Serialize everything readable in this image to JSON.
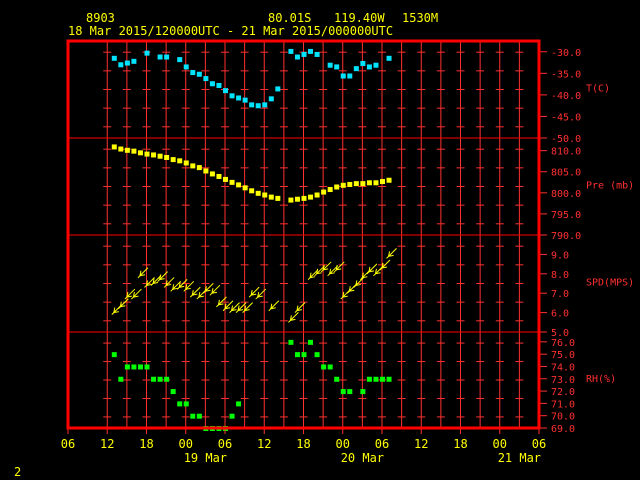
{
  "header": {
    "station": "8903",
    "lat": "80.01S",
    "lon": "119.40W",
    "elevation": "1530M",
    "range": "18 Mar 2015/120000UTC - 21 Mar 2015/000000UTC"
  },
  "page_number": "2",
  "colors": {
    "frame": "#ff0000",
    "grid": "#ff3030",
    "text": "#ffff00",
    "temp": "#00e5ff",
    "pres": "#ffff00",
    "wind": "#ffff00",
    "rh": "#00ff00"
  },
  "chart_data": {
    "type": "scatter",
    "x_unit": "hours since 18 Mar 06 UTC",
    "x_range": [
      0,
      72
    ],
    "x_ticks": [
      "06",
      "12",
      "18",
      "00",
      "06",
      "12",
      "18",
      "00",
      "06",
      "12",
      "18",
      "00",
      "06"
    ],
    "date_labels": [
      {
        "label": "19 Mar",
        "hour": 21
      },
      {
        "label": "20 Mar",
        "hour": 45
      },
      {
        "label": "21 Mar",
        "hour": 69
      }
    ],
    "panels": [
      {
        "name": "temp",
        "label": "T(C)",
        "ylim": [
          -50,
          -27.5
        ],
        "ticks": [
          {
            "v": -30,
            "t": "-30.0"
          },
          {
            "v": -35,
            "t": "-35.0"
          },
          {
            "v": -40,
            "t": "-40.0"
          },
          {
            "v": -45,
            "t": "-45.0"
          },
          {
            "v": -50,
            "t": "-50.0"
          }
        ],
        "points": [
          [
            7,
            -31.4
          ],
          [
            8,
            -32.9
          ],
          [
            9,
            -32.5
          ],
          [
            10,
            -32.1
          ],
          [
            12,
            -30.2
          ],
          [
            14,
            -31.1
          ],
          [
            15,
            -31.1
          ],
          [
            17,
            -31.7
          ],
          [
            18,
            -33.4
          ],
          [
            19,
            -34.7
          ],
          [
            20,
            -35.1
          ],
          [
            21,
            -36.1
          ],
          [
            22,
            -37.3
          ],
          [
            23,
            -37.7
          ],
          [
            24,
            -38.9
          ],
          [
            25,
            -40.1
          ],
          [
            26,
            -40.6
          ],
          [
            27,
            -41.1
          ],
          [
            28,
            -42.2
          ],
          [
            29,
            -42.4
          ],
          [
            30,
            -42.2
          ],
          [
            31,
            -40.8
          ],
          [
            32,
            -38.5
          ],
          [
            34,
            -29.8
          ],
          [
            35,
            -31.1
          ],
          [
            36,
            -30.5
          ],
          [
            37,
            -29.8
          ],
          [
            38,
            -30.5
          ],
          [
            40,
            -33.0
          ],
          [
            41,
            -33.4
          ],
          [
            42,
            -35.5
          ],
          [
            43,
            -35.5
          ],
          [
            44,
            -33.8
          ],
          [
            45,
            -32.6
          ],
          [
            46,
            -33.4
          ],
          [
            47,
            -33.0
          ],
          [
            49,
            -31.4
          ]
        ]
      },
      {
        "name": "pres",
        "label": "Pre (mb)",
        "ylim": [
          790,
          813
        ],
        "ticks": [
          {
            "v": 810,
            "t": "810.0"
          },
          {
            "v": 805,
            "t": "805.0"
          },
          {
            "v": 800,
            "t": "800.0"
          },
          {
            "v": 795,
            "t": "795.0"
          },
          {
            "v": 790,
            "t": "790.0"
          }
        ],
        "points": [
          [
            7,
            811.0
          ],
          [
            8,
            810.5
          ],
          [
            9,
            810.2
          ],
          [
            10,
            810.0
          ],
          [
            11,
            809.6
          ],
          [
            12,
            809.3
          ],
          [
            13,
            809.1
          ],
          [
            14,
            808.8
          ],
          [
            15,
            808.5
          ],
          [
            16,
            808.0
          ],
          [
            17,
            807.7
          ],
          [
            18,
            807.2
          ],
          [
            19,
            806.5
          ],
          [
            20,
            806.1
          ],
          [
            21,
            805.3
          ],
          [
            22,
            804.6
          ],
          [
            23,
            804.0
          ],
          [
            24,
            803.3
          ],
          [
            25,
            802.6
          ],
          [
            26,
            802.0
          ],
          [
            27,
            801.3
          ],
          [
            28,
            800.6
          ],
          [
            29,
            800.0
          ],
          [
            30,
            799.6
          ],
          [
            31,
            799.1
          ],
          [
            32,
            798.8
          ],
          [
            34,
            798.4
          ],
          [
            35,
            798.6
          ],
          [
            36,
            798.8
          ],
          [
            37,
            799.1
          ],
          [
            38,
            799.6
          ],
          [
            39,
            800.3
          ],
          [
            40,
            800.9
          ],
          [
            41,
            801.5
          ],
          [
            42,
            801.9
          ],
          [
            43,
            802.1
          ],
          [
            44,
            802.3
          ],
          [
            45,
            802.3
          ],
          [
            46,
            802.5
          ],
          [
            47,
            802.5
          ],
          [
            48,
            802.8
          ],
          [
            49,
            803.1
          ]
        ]
      },
      {
        "name": "wind",
        "label": "SPD(MPS)",
        "ylim": [
          5,
          10
        ],
        "ticks": [
          {
            "v": 9,
            "t": "9.0"
          },
          {
            "v": 8,
            "t": "8.0"
          },
          {
            "v": 7,
            "t": "7.0"
          },
          {
            "v": 6,
            "t": "6.0"
          },
          {
            "v": 5,
            "t": "5.0"
          }
        ],
        "points": [
          [
            7,
            6.0
          ],
          [
            8,
            6.3
          ],
          [
            9,
            6.8
          ],
          [
            10,
            6.8
          ],
          [
            11,
            7.9
          ],
          [
            12,
            7.4
          ],
          [
            13,
            7.5
          ],
          [
            14,
            7.7
          ],
          [
            15,
            7.4
          ],
          [
            16,
            7.2
          ],
          [
            17,
            7.3
          ],
          [
            18,
            7.2
          ],
          [
            19,
            6.9
          ],
          [
            20,
            6.8
          ],
          [
            21,
            7.1
          ],
          [
            22,
            7.0
          ],
          [
            23,
            6.4
          ],
          [
            24,
            6.2
          ],
          [
            25,
            6.1
          ],
          [
            26,
            6.1
          ],
          [
            27,
            6.1
          ],
          [
            28,
            6.9
          ],
          [
            29,
            6.8
          ],
          [
            31,
            6.2
          ],
          [
            34,
            5.6
          ],
          [
            35,
            6.1
          ],
          [
            37,
            7.8
          ],
          [
            38,
            8.0
          ],
          [
            39,
            8.2
          ],
          [
            40,
            8.0
          ],
          [
            41,
            8.2
          ],
          [
            42,
            6.8
          ],
          [
            43,
            7.1
          ],
          [
            44,
            7.4
          ],
          [
            45,
            7.8
          ],
          [
            46,
            8.1
          ],
          [
            47,
            8.0
          ],
          [
            48,
            8.3
          ],
          [
            49,
            8.9
          ]
        ]
      },
      {
        "name": "rh",
        "label": "RH(%)",
        "ylim": [
          69,
          76.8
        ],
        "ticks": [
          {
            "v": 76,
            "t": "76.0"
          },
          {
            "v": 75,
            "t": "75.0"
          },
          {
            "v": 74,
            "t": "74.0"
          },
          {
            "v": 73,
            "t": "73.0"
          },
          {
            "v": 72,
            "t": "72.0"
          },
          {
            "v": 71,
            "t": "71.0"
          },
          {
            "v": 70,
            "t": "70.0"
          },
          {
            "v": 69,
            "t": "69.0"
          }
        ],
        "points": [
          [
            7,
            75.0
          ],
          [
            8,
            73.0
          ],
          [
            9,
            74.0
          ],
          [
            10,
            74.0
          ],
          [
            11,
            74.0
          ],
          [
            12,
            74.0
          ],
          [
            13,
            73.0
          ],
          [
            14,
            73.0
          ],
          [
            15,
            73.0
          ],
          [
            16,
            72.0
          ],
          [
            17,
            71.0
          ],
          [
            18,
            71.0
          ],
          [
            19,
            70.0
          ],
          [
            20,
            70.0
          ],
          [
            21,
            69.0
          ],
          [
            22,
            69.0
          ],
          [
            23,
            69.0
          ],
          [
            24,
            69.0
          ],
          [
            25,
            70.0
          ],
          [
            26,
            71.0
          ],
          [
            34,
            76.0
          ],
          [
            35,
            75.0
          ],
          [
            36,
            75.0
          ],
          [
            37,
            76.0
          ],
          [
            38,
            75.0
          ],
          [
            39,
            74.0
          ],
          [
            40,
            74.0
          ],
          [
            41,
            73.0
          ],
          [
            42,
            72.0
          ],
          [
            43,
            72.0
          ],
          [
            45,
            72.0
          ],
          [
            46,
            73.0
          ],
          [
            47,
            73.0
          ],
          [
            48,
            73.0
          ],
          [
            49,
            73.0
          ]
        ]
      }
    ]
  }
}
